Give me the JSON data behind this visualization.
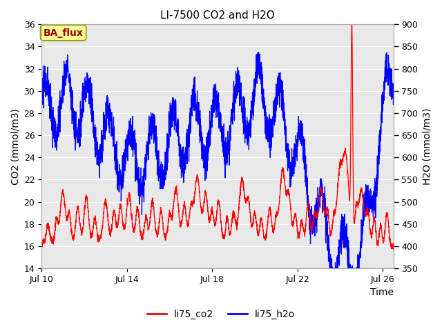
{
  "title": "LI-7500 CO2 and H2O",
  "xlabel": "Time",
  "ylabel_left": "CO2 (mmol/m3)",
  "ylabel_right": "H2O (mmol/m3)",
  "xlim_days": [
    0,
    16.5
  ],
  "ylim_left": [
    14,
    36
  ],
  "ylim_right": [
    350,
    900
  ],
  "yticks_left": [
    14,
    16,
    18,
    20,
    22,
    24,
    26,
    28,
    30,
    32,
    34,
    36
  ],
  "yticks_right": [
    350,
    400,
    450,
    500,
    550,
    600,
    650,
    700,
    750,
    800,
    850,
    900
  ],
  "xtick_labels": [
    "Jul 10",
    "Jul 14",
    "Jul 18",
    "Jul 22",
    "Jul 26"
  ],
  "xtick_positions": [
    0,
    4,
    8,
    12,
    16
  ],
  "color_co2": "#ff0000",
  "color_h2o": "#0000ff",
  "background_plot": "#e8e8e8",
  "background_fig": "#ffffff",
  "grid_color": "#ffffff",
  "label_co2": "li75_co2",
  "label_h2o": "li75_h2o",
  "annotation_text": "BA_flux",
  "annotation_bg": "#ffff99",
  "annotation_border": "#999900",
  "title_fontsize": 11,
  "axis_fontsize": 10,
  "tick_fontsize": 9,
  "legend_fontsize": 10,
  "linewidth_co2": 0.9,
  "linewidth_h2o": 0.9
}
